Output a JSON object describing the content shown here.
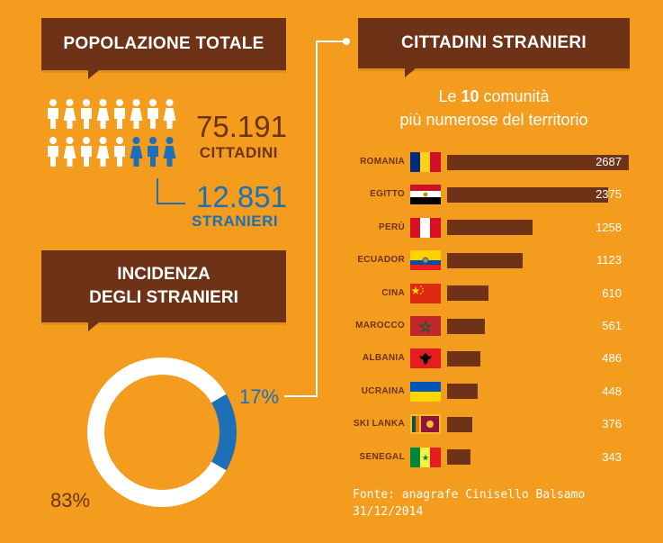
{
  "banners": {
    "popolazione": "POPOLAZIONE TOTALE",
    "cittadini": "CITTADINI STRANIERI",
    "incidenza": "INCIDENZA\nDEGLI STRANIERI"
  },
  "populazione": {
    "total_value": "75.191",
    "total_label": "CITTADINI",
    "foreign_value": "12.851",
    "foreign_label": "STRANIERI",
    "icons_total": 16,
    "icons_foreign": 3
  },
  "subtitle": {
    "line1_pre": "Le ",
    "line1_bold": "10",
    "line1_post": " comunità",
    "line2": "più numerose del territorio"
  },
  "colors": {
    "background": "#F39C1E",
    "brown": "#6E3217",
    "blue": "#1E6FB5",
    "white": "#FFFFFF"
  },
  "chart_data": [
    {
      "type": "bar",
      "orientation": "horizontal",
      "title": "CITTADINI STRANIERI",
      "categories": [
        "ROMANIA",
        "EGITTO",
        "PERÙ",
        "ECUADOR",
        "CINA",
        "MAROCCO",
        "ALBANIA",
        "UCRAINA",
        "SKI LANKA",
        "SENEGAL"
      ],
      "values": [
        2687,
        2375,
        1258,
        1123,
        610,
        561,
        486,
        448,
        376,
        343
      ],
      "value_labels": [
        "2687",
        "2375",
        "1258",
        "1123",
        "610",
        "561",
        "486",
        "448",
        "376",
        "343"
      ],
      "flags": [
        "flag-romania",
        "flag-egypt",
        "flag-peru",
        "flag-ecuador",
        "flag-china",
        "flag-morocco",
        "flag-albania",
        "flag-ukraine",
        "flag-sri-lanka",
        "flag-senegal"
      ],
      "bar_color": "#6E3217"
    },
    {
      "type": "pie",
      "title": "INCIDENZA DEGLI STRANIERI",
      "style": "donut",
      "slices": [
        {
          "label": "17%",
          "value": 17,
          "color": "#1E6FB5"
        },
        {
          "label": "83%",
          "value": 83,
          "color": "#FFFFFF"
        }
      ]
    }
  ],
  "source": "Fonte: anagrafe Cinisello Balsamo\n31/12/2014"
}
